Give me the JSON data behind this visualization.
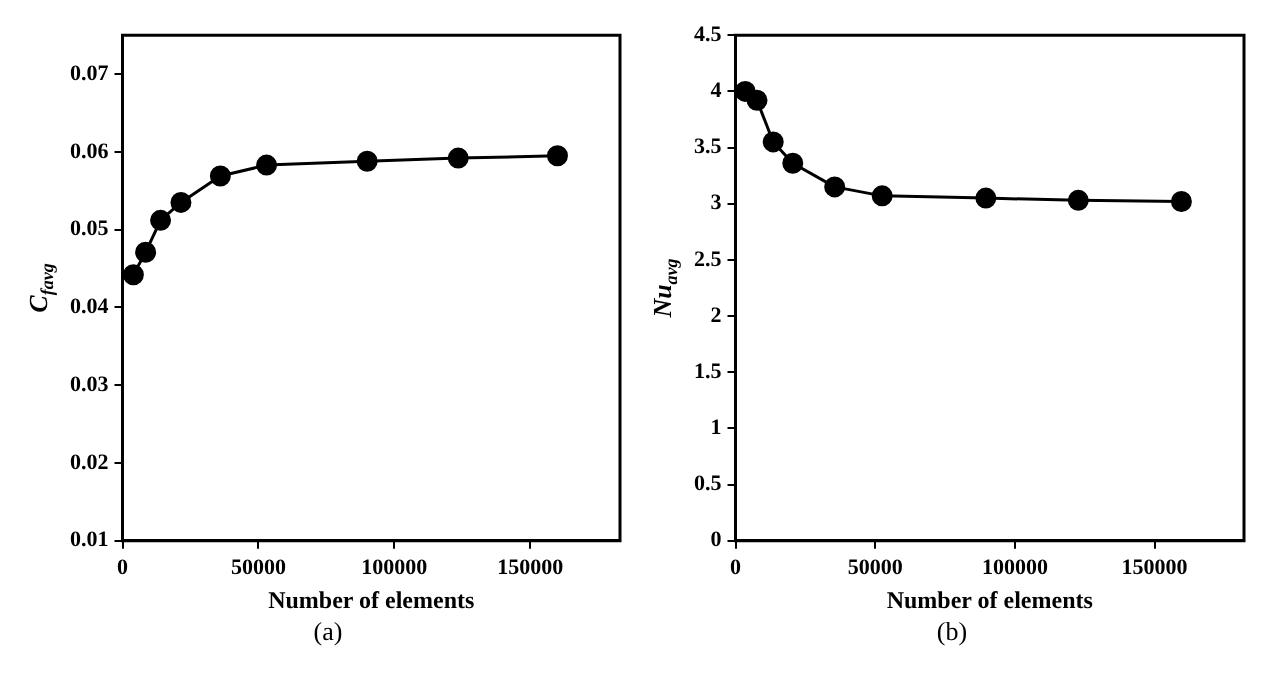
{
  "chart_data": [
    {
      "type": "line",
      "xlabel": "Number of elements",
      "ylabel": "C$_{favg}$",
      "x": [
        4000,
        8500,
        14000,
        21500,
        36000,
        53000,
        90000,
        123500,
        160000
      ],
      "series": [
        {
          "color": "#000000",
          "values": [
            0.0442,
            0.0471,
            0.0512,
            0.0535,
            0.0569,
            0.0583,
            0.0588,
            0.0592,
            0.0595
          ]
        }
      ],
      "xlim": [
        0,
        183000
      ],
      "xticks": [
        0,
        50000,
        100000,
        150000
      ],
      "ylim": [
        0.01,
        0.075
      ],
      "yticks": [
        0.01,
        0.02,
        0.03,
        0.04,
        0.05,
        0.06,
        0.07
      ],
      "grid": false,
      "legend": false,
      "marker": "circle",
      "line_style": "solid",
      "annotations": [
        "(a)"
      ]
    },
    {
      "type": "line",
      "xlabel": "Number of elements",
      "ylabel": "Nu$_{avg}$",
      "x": [
        3500,
        7700,
        13500,
        20500,
        35500,
        52500,
        89600,
        122700,
        159600
      ],
      "series": [
        {
          "color": "#000000",
          "values": [
            4.0,
            3.92,
            3.55,
            3.36,
            3.15,
            3.07,
            3.05,
            3.03,
            3.02
          ]
        }
      ],
      "xlim": [
        0,
        182000
      ],
      "xticks": [
        0,
        50000,
        100000,
        150000
      ],
      "ylim": [
        0,
        4.5
      ],
      "yticks": [
        0,
        0.5,
        1,
        1.5,
        2,
        2.5,
        3,
        3.5,
        4,
        4.5
      ],
      "grid": false,
      "legend": false,
      "marker": "circle",
      "line_style": "solid",
      "annotations": [
        "(b)"
      ]
    }
  ]
}
